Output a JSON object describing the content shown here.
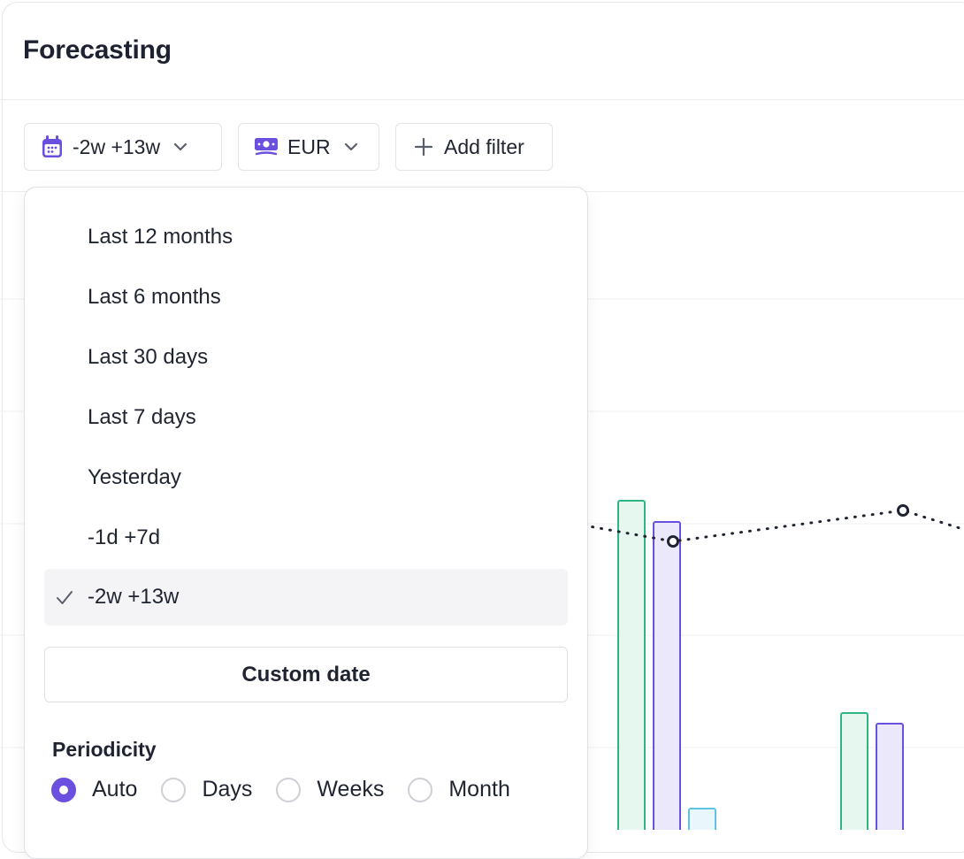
{
  "header": {
    "title": "Forecasting"
  },
  "toolbar": {
    "date_label": "-2w +13w",
    "currency_label": "EUR",
    "filter_label": "Add filter",
    "icons": {
      "date": "calendar-icon",
      "currency": "banknote-icon",
      "filter": "plus-icon",
      "chevron": "chevron-down-icon"
    }
  },
  "dropdown": {
    "options": [
      {
        "label": "Last 12 months",
        "selected": false
      },
      {
        "label": "Last 6 months",
        "selected": false
      },
      {
        "label": "Last 30 days",
        "selected": false
      },
      {
        "label": "Last 7 days",
        "selected": false
      },
      {
        "label": "Yesterday",
        "selected": false
      },
      {
        "label": "-1d +7d",
        "selected": false
      },
      {
        "label": "-2w +13w",
        "selected": true
      }
    ],
    "custom_label": "Custom date",
    "periodicity_title": "Periodicity",
    "periodicity": [
      {
        "label": "Auto",
        "selected": true
      },
      {
        "label": "Days",
        "selected": false
      },
      {
        "label": "Weeks",
        "selected": false
      },
      {
        "label": "Month",
        "selected": false
      }
    ]
  },
  "colors": {
    "accent": "#6b4fde",
    "bar_green_stroke": "#2fb581",
    "bar_green_fill": "#e6f7ef",
    "bar_purple_stroke": "#6b4fde",
    "bar_purple_fill": "#ebe8fb",
    "bar_blue_stroke": "#5fc3e4",
    "bar_blue_fill": "#e9f7fc",
    "line": "#1f2430"
  },
  "chart_data": {
    "type": "bar",
    "note": "Partially visible chart behind the date dropdown; values are relative (no axis labels visible).",
    "groups": [
      {
        "series": "green",
        "value": 0.62
      },
      {
        "series": "purple",
        "value": 0.58
      },
      {
        "series": "blue",
        "value": 0.04
      },
      {
        "series": "green",
        "value": 0.22
      },
      {
        "series": "purple",
        "value": 0.2
      }
    ],
    "line": {
      "style": "dotted",
      "marker_values": [
        0.55,
        0.6
      ]
    }
  }
}
